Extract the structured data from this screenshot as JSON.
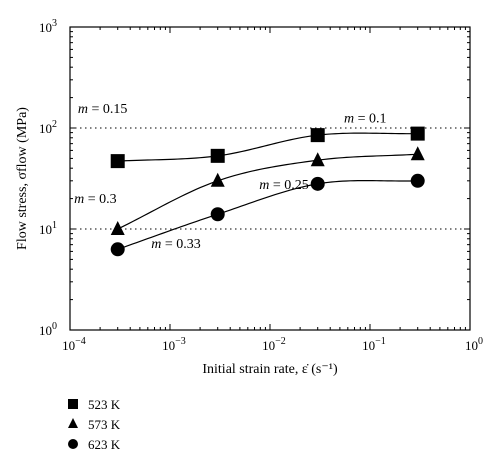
{
  "chart_data": {
    "type": "scatter",
    "x_scale": "log",
    "y_scale": "log",
    "xlim": [
      0.0001,
      1
    ],
    "ylim": [
      1,
      1000
    ],
    "xlabel": "Initial strain rate, ε̇ (s⁻¹)",
    "ylabel": "Flow stress, σflow (MPa)",
    "x_ticks": [
      {
        "value": 0.0001,
        "base": "10",
        "exp": "−4"
      },
      {
        "value": 0.001,
        "base": "10",
        "exp": "−3"
      },
      {
        "value": 0.01,
        "base": "10",
        "exp": "−2"
      },
      {
        "value": 0.1,
        "base": "10",
        "exp": "−1"
      },
      {
        "value": 1,
        "base": "10",
        "exp": "0"
      }
    ],
    "y_ticks": [
      {
        "value": 1,
        "base": "10",
        "exp": "0"
      },
      {
        "value": 10,
        "base": "10",
        "exp": "1"
      },
      {
        "value": 100,
        "base": "10",
        "exp": "2"
      },
      {
        "value": 1000,
        "base": "10",
        "exp": "3"
      }
    ],
    "reference_lines_y": [
      10,
      100
    ],
    "x": [
      0.0003,
      0.003,
      0.03,
      0.3
    ],
    "series": [
      {
        "name": "523 K",
        "marker": "square",
        "values": [
          47,
          53,
          85,
          88
        ]
      },
      {
        "name": "573 K",
        "marker": "triangle",
        "values": [
          10,
          30,
          48,
          55
        ]
      },
      {
        "name": "623 K",
        "marker": "circle",
        "values": [
          6.3,
          14,
          28,
          30
        ]
      }
    ],
    "annotations": [
      {
        "text": "m = 0.15",
        "x": 0.00012,
        "y": 140
      },
      {
        "text": "m = 0.1",
        "x": 0.055,
        "y": 113
      },
      {
        "text": "m = 0.3",
        "x": 0.00011,
        "y": 18
      },
      {
        "text": "m = 0.25",
        "x": 0.0078,
        "y": 25
      },
      {
        "text": "m = 0.33",
        "x": 0.00065,
        "y": 6.5
      }
    ],
    "legend_position": "bottom-left",
    "grid": false
  }
}
